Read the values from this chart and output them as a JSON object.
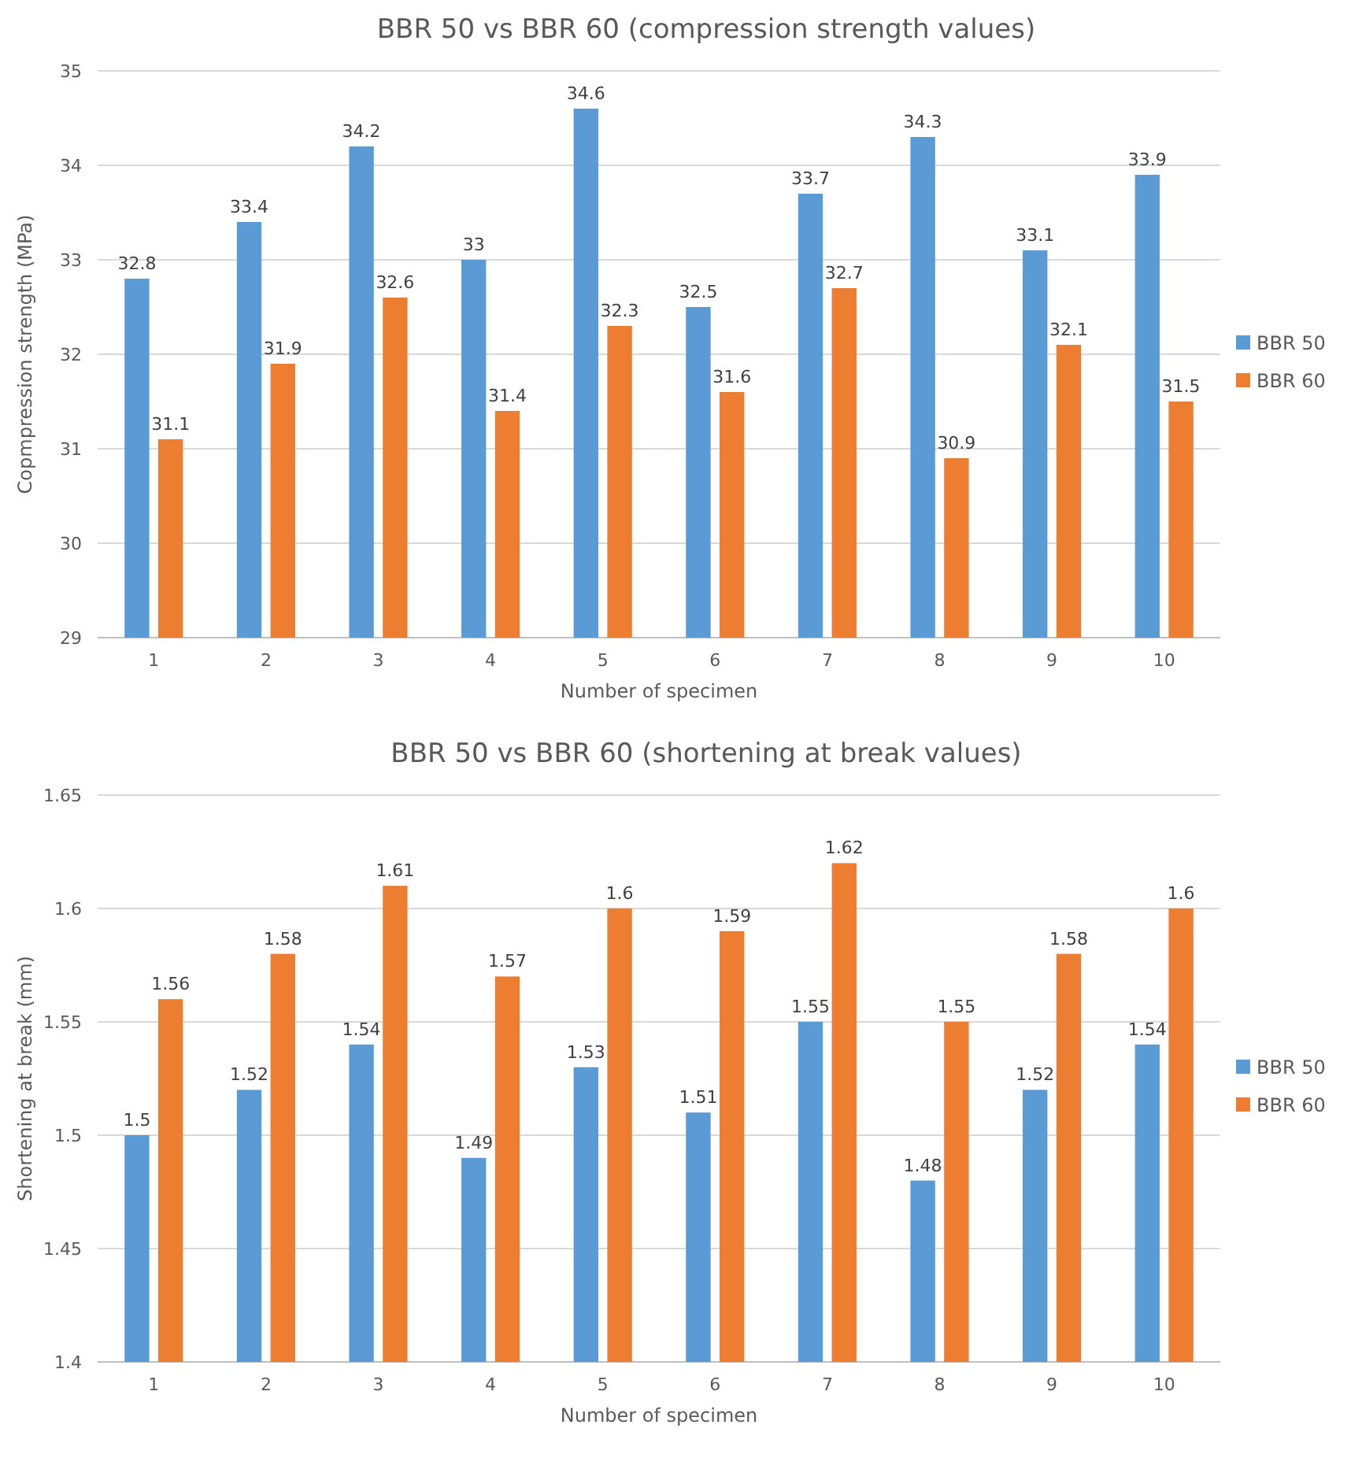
{
  "chart_data": [
    {
      "type": "bar",
      "title": "BBR 50 vs BBR 60 (compression strength values)",
      "xlabel": "Number of specimen",
      "ylabel": "Copmpression strength (MPa)",
      "categories": [
        "1",
        "2",
        "3",
        "4",
        "5",
        "6",
        "7",
        "8",
        "9",
        "10"
      ],
      "series": [
        {
          "name": "BBR 50",
          "color": "#5b9bd5",
          "values": [
            32.8,
            33.4,
            34.2,
            33,
            34.6,
            32.5,
            33.7,
            34.3,
            33.1,
            33.9
          ]
        },
        {
          "name": "BBR 60",
          "color": "#ed7d31",
          "values": [
            31.1,
            31.9,
            32.6,
            31.4,
            32.3,
            31.6,
            32.7,
            30.9,
            32.1,
            31.5
          ]
        }
      ],
      "ylim": [
        29,
        35
      ],
      "yticks": [
        29,
        30,
        31,
        32,
        33,
        34,
        35
      ],
      "grid": "y",
      "legend": "right",
      "data_labels": true
    },
    {
      "type": "bar",
      "title": "BBR 50 vs BBR 60 (shortening at break values)",
      "xlabel": "Number of specimen",
      "ylabel": "Shortening at break (mm)",
      "categories": [
        "1",
        "2",
        "3",
        "4",
        "5",
        "6",
        "7",
        "8",
        "9",
        "10"
      ],
      "series": [
        {
          "name": "BBR 50",
          "color": "#5b9bd5",
          "values": [
            1.5,
            1.52,
            1.54,
            1.49,
            1.53,
            1.51,
            1.55,
            1.48,
            1.52,
            1.54
          ]
        },
        {
          "name": "BBR 60",
          "color": "#ed7d31",
          "values": [
            1.56,
            1.58,
            1.61,
            1.57,
            1.6,
            1.59,
            1.62,
            1.55,
            1.58,
            1.6
          ]
        }
      ],
      "ylim": [
        1.4,
        1.65
      ],
      "yticks": [
        1.4,
        1.45,
        1.5,
        1.55,
        1.6,
        1.65
      ],
      "grid": "y",
      "legend": "right",
      "data_labels": true
    }
  ]
}
